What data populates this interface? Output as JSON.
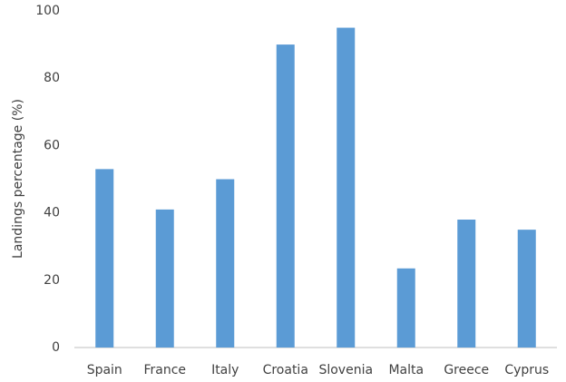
{
  "chart_data": {
    "type": "bar",
    "y_label": "Landings percentage (%)",
    "categories": [
      "Spain",
      "France",
      "Italy",
      "Croatia",
      "Slovenia",
      "Malta",
      "Greece",
      "Cyprus"
    ],
    "values": [
      53,
      41,
      50,
      90,
      95,
      23.5,
      38,
      35
    ],
    "color": "#5b9bd5",
    "ylim": [
      0,
      100
    ],
    "yticks": [
      0,
      20,
      40,
      60,
      80,
      100
    ],
    "grid": false
  }
}
